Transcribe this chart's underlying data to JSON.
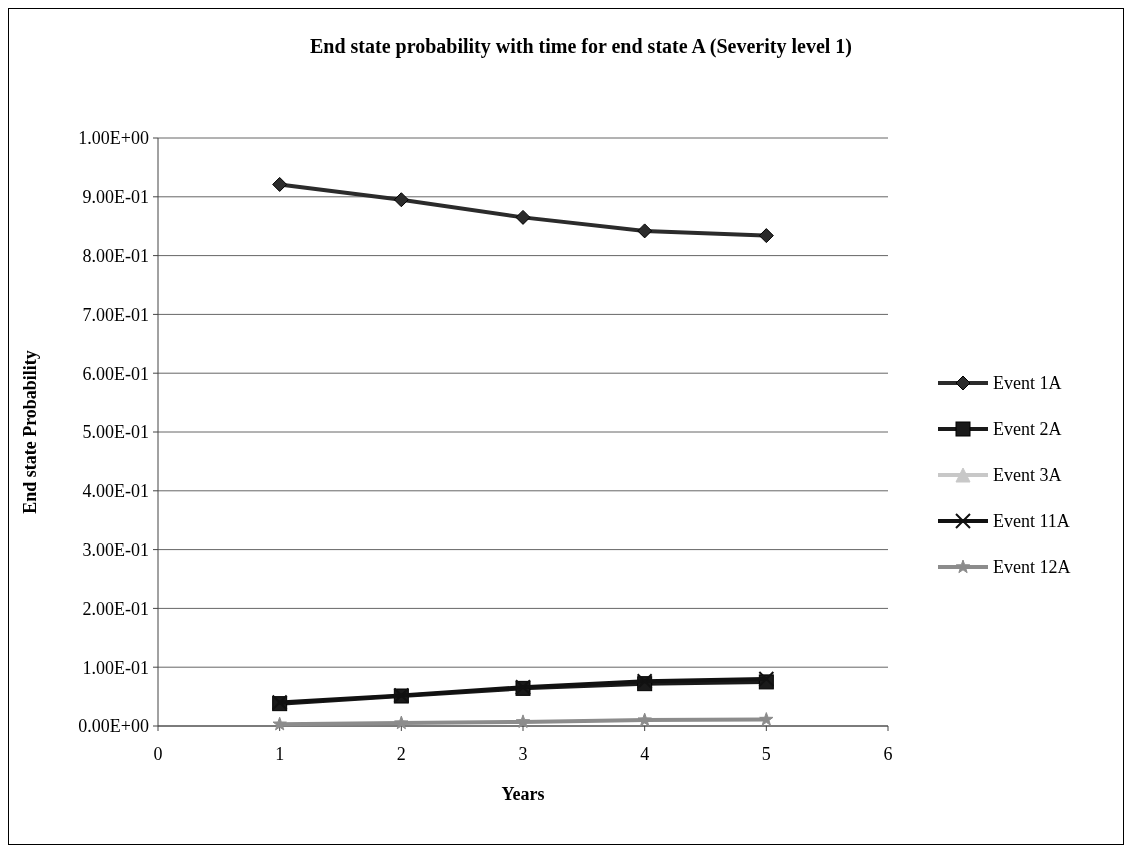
{
  "chart_data": {
    "type": "line",
    "title": "End state probability with time for end state A (Severity level 1)",
    "xlabel": "Years",
    "ylabel": "End state Probability",
    "x": [
      1,
      2,
      3,
      4,
      5
    ],
    "series": [
      {
        "name": "Event 1A",
        "color": "#2b2b2b",
        "marker": "diamond",
        "values": [
          0.921,
          0.895,
          0.865,
          0.842,
          0.834
        ]
      },
      {
        "name": "Event 2A",
        "color": "#1a1a1a",
        "marker": "square",
        "values": [
          0.038,
          0.051,
          0.064,
          0.072,
          0.075
        ]
      },
      {
        "name": "Event 3A",
        "color": "#c8c8c8",
        "marker": "triangle",
        "values": [
          null,
          null,
          null,
          null,
          null
        ]
      },
      {
        "name": "Event 11A",
        "color": "#111111",
        "marker": "cross",
        "values": [
          0.04,
          0.052,
          0.066,
          0.076,
          0.08
        ]
      },
      {
        "name": "Event 12A",
        "color": "#8c8c8c",
        "marker": "star",
        "values": [
          0.003,
          0.005,
          0.007,
          0.01,
          0.011
        ]
      }
    ],
    "xlim": [
      0,
      6
    ],
    "xticks": [
      0,
      1,
      2,
      3,
      4,
      5,
      6
    ],
    "ylim": [
      0,
      1
    ],
    "yticks": [
      {
        "value": 0,
        "label": "0.00E+00"
      },
      {
        "value": 0.1,
        "label": "1.00E-01"
      },
      {
        "value": 0.2,
        "label": "2.00E-01"
      },
      {
        "value": 0.3,
        "label": "3.00E-01"
      },
      {
        "value": 0.4,
        "label": "4.00E-01"
      },
      {
        "value": 0.5,
        "label": "5.00E-01"
      },
      {
        "value": 0.6,
        "label": "6.00E-01"
      },
      {
        "value": 0.7,
        "label": "7.00E-01"
      },
      {
        "value": 0.8,
        "label": "8.00E-01"
      },
      {
        "value": 0.9,
        "label": "9.00E-01"
      },
      {
        "value": 1,
        "label": "1.00E+00"
      }
    ],
    "grid": "y",
    "legend": "right",
    "line_style": "solid"
  }
}
